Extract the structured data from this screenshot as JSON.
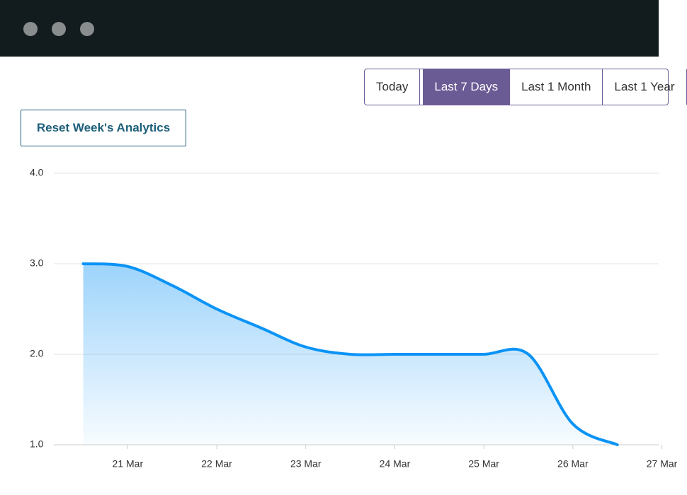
{
  "range_buttons": [
    "Today",
    "Last 7 Days",
    "Last 1 Month",
    "Last 1 Year"
  ],
  "active_range": 1,
  "reset_button": "Reset Week's Analytics",
  "chart_data": {
    "type": "area",
    "categories": [
      null,
      "21 Mar",
      null,
      "22 Mar",
      null,
      "23 Mar",
      null,
      "24 Mar",
      null,
      "25 Mar",
      null,
      "26 Mar",
      null,
      "27 Mar"
    ],
    "values": [
      3.0,
      2.97,
      2.76,
      2.5,
      2.29,
      2.08,
      2.0,
      2.0,
      2.0,
      2.0,
      2.0,
      1.23,
      1.0,
      null
    ],
    "color": "#0b93f6",
    "ylim": [
      1,
      4
    ],
    "yticks": [
      {
        "value": 1,
        "label": "1.0"
      },
      {
        "value": 2,
        "label": "2.0"
      },
      {
        "value": 3,
        "label": "3.0"
      },
      {
        "value": 4,
        "label": "4.0"
      }
    ],
    "grid": true
  }
}
